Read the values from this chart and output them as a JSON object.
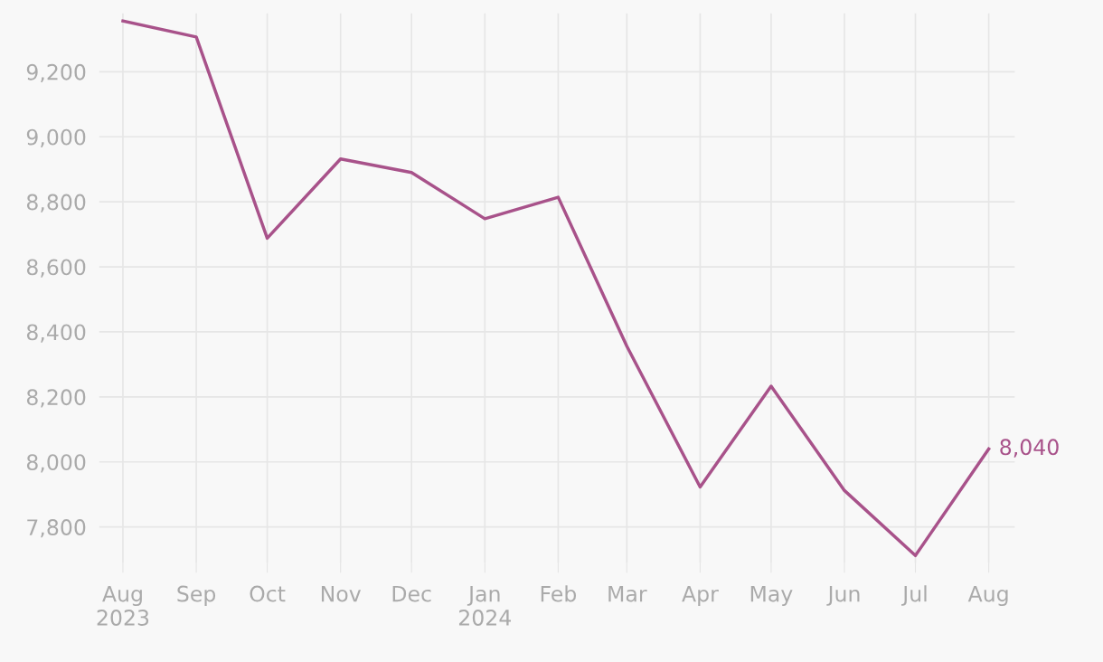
{
  "chart_data": {
    "type": "line",
    "x": [
      "2023-08",
      "2023-09",
      "2023-10",
      "2023-11",
      "2023-12",
      "2024-01",
      "2024-02",
      "2024-03",
      "2024-04",
      "2024-05",
      "2024-06",
      "2024-07",
      "2024-08"
    ],
    "series": [
      {
        "color": "#a8528a",
        "values": [
          9356,
          9307,
          8688,
          8932,
          8890,
          8748,
          8814,
          8356,
          7923,
          8233,
          7912,
          7712,
          8040
        ]
      }
    ],
    "ylim": [
      7690,
      9380
    ],
    "yticks": [
      {
        "value": 7800,
        "label": "7,800"
      },
      {
        "value": 8000,
        "label": "8,000"
      },
      {
        "value": 8200,
        "label": "8,200"
      },
      {
        "value": 8400,
        "label": "8,400"
      },
      {
        "value": 8600,
        "label": "8,600"
      },
      {
        "value": 8800,
        "label": "8,800"
      },
      {
        "value": 9000,
        "label": "9,000"
      },
      {
        "value": 9200,
        "label": "9,200"
      }
    ],
    "xlim": [
      "2023-07-22",
      "2024-08-12"
    ],
    "xticks": [
      {
        "value": "2023-08",
        "label": "Aug\n2023"
      },
      {
        "value": "2023-09",
        "label": "Sep"
      },
      {
        "value": "2023-10",
        "label": "Oct"
      },
      {
        "value": "2023-11",
        "label": "Nov"
      },
      {
        "value": "2023-12",
        "label": "Dec"
      },
      {
        "value": "2024-01",
        "label": "Jan\n2024"
      },
      {
        "value": "2024-02",
        "label": "Feb"
      },
      {
        "value": "2024-03",
        "label": "Mar"
      },
      {
        "value": "2024-04",
        "label": "Apr"
      },
      {
        "value": "2024-05",
        "label": "May"
      },
      {
        "value": "2024-06",
        "label": "Jun"
      },
      {
        "value": "2024-07",
        "label": "Jul"
      },
      {
        "value": "2024-08",
        "label": "Aug"
      }
    ],
    "grid": true,
    "annotations": [
      {
        "text": "8,040",
        "x": "2024-08",
        "y": 8040
      }
    ]
  }
}
